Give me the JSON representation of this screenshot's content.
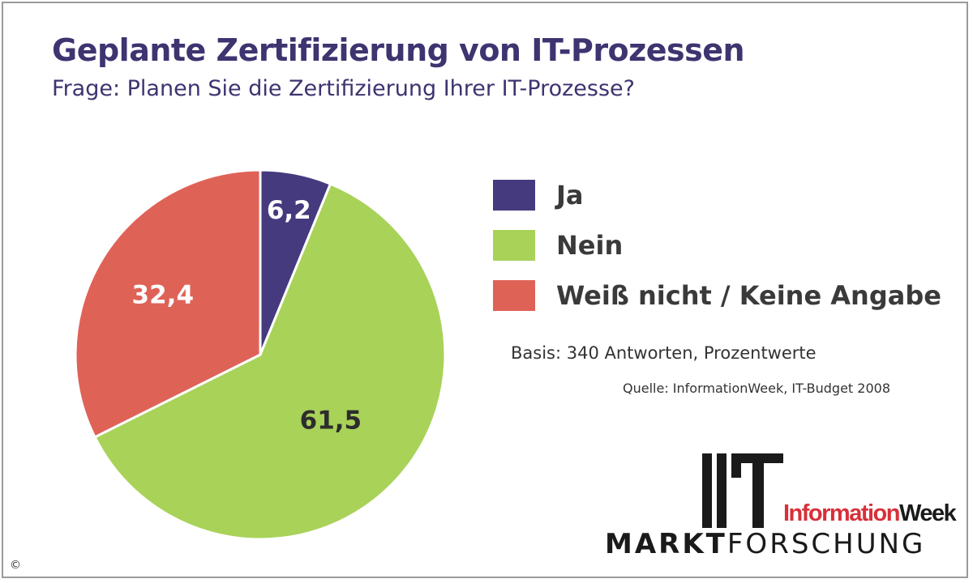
{
  "chart_data": {
    "type": "pie",
    "title": "Geplante Zertifizierung von IT-Prozessen",
    "subtitle": "Frage: Planen Sie die Zertifizierung Ihrer IT-Prozesse?",
    "slices": [
      {
        "label": "Ja",
        "value": 6.2,
        "display": "6,2",
        "color": "#463a7e",
        "label_color": "#ffffff"
      },
      {
        "label": "Nein",
        "value": 61.5,
        "display": "61,5",
        "color": "#a9d259",
        "label_color": "#2d2d2d"
      },
      {
        "label": "Weiß nicht / Keine Angabe",
        "value": 32.4,
        "display": "32,4",
        "color": "#df6257",
        "label_color": "#ffffff"
      }
    ],
    "legend_position": "right"
  },
  "notes": {
    "basis": "Basis: 340 Antworten, Prozentwerte",
    "source": "Quelle: InformationWeek, IT-Budget 2008"
  },
  "logo": {
    "brand_part1": "Information",
    "brand_part2": "Week",
    "market_part1": "MARKT",
    "market_part2": "FORSCHUNG"
  },
  "copyright": "©"
}
